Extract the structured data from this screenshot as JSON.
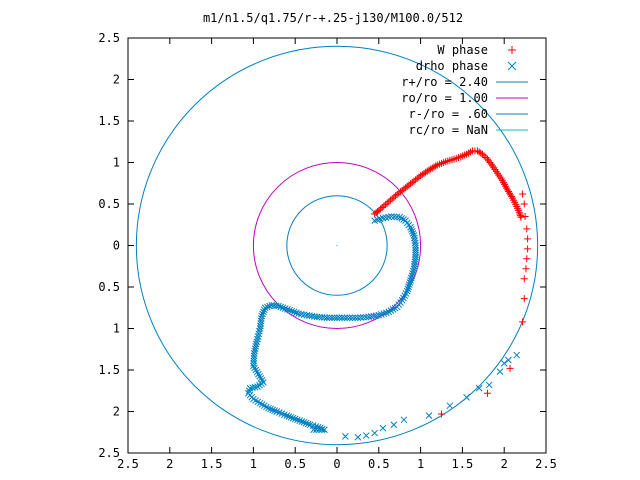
{
  "chart_data": {
    "type": "scatter",
    "title": "m1/n1.5/q1.75/r-+.25-j130/M100.0/512",
    "xlim": [
      -2.5,
      2.5
    ],
    "ylim": [
      -2.5,
      2.5
    ],
    "x_tick_labels": [
      "2.5",
      "2",
      "1.5",
      "1",
      "0.5",
      "0",
      "0.5",
      "1",
      "1.5",
      "2",
      "2.5"
    ],
    "y_tick_labels": [
      "2.5",
      "2",
      "1.5",
      "1",
      "0.5",
      "0",
      "0.5",
      "1",
      "1.5",
      "2",
      "2.5"
    ],
    "grid": false,
    "legend_position": "top-right",
    "colors": {
      "w_phase": "#ff0000",
      "drho_phase": "#0080c0",
      "r_plus": "#0080c0",
      "ro": "#c000c0",
      "r_minus": "#0080c0",
      "rc": "#00c0c0"
    },
    "series": [
      {
        "name": "W phase",
        "marker": "plus",
        "points": [
          [
            0.45,
            0.38
          ],
          [
            0.52,
            0.44
          ],
          [
            0.6,
            0.51
          ],
          [
            0.7,
            0.6
          ],
          [
            0.8,
            0.68
          ],
          [
            0.9,
            0.76
          ],
          [
            1.0,
            0.84
          ],
          [
            1.1,
            0.91
          ],
          [
            1.2,
            0.97
          ],
          [
            1.3,
            1.01
          ],
          [
            1.4,
            1.04
          ],
          [
            1.48,
            1.07
          ],
          [
            1.55,
            1.1
          ],
          [
            1.62,
            1.14
          ],
          [
            1.68,
            1.14
          ],
          [
            1.74,
            1.1
          ],
          [
            1.8,
            1.04
          ],
          [
            1.86,
            0.96
          ],
          [
            1.92,
            0.87
          ],
          [
            1.98,
            0.78
          ],
          [
            2.04,
            0.67
          ],
          [
            2.1,
            0.57
          ],
          [
            2.15,
            0.47
          ],
          [
            2.18,
            0.4
          ],
          [
            2.2,
            0.34
          ],
          [
            2.22,
            0.62
          ],
          [
            2.24,
            0.5
          ],
          [
            2.25,
            0.35
          ],
          [
            2.27,
            0.2
          ],
          [
            2.28,
            0.08
          ],
          [
            2.28,
            -0.04
          ],
          [
            2.27,
            -0.16
          ],
          [
            2.26,
            -0.28
          ],
          [
            2.24,
            -0.4
          ],
          [
            2.24,
            -0.64
          ],
          [
            2.22,
            -0.92
          ],
          [
            2.07,
            -1.48
          ],
          [
            1.8,
            -1.78
          ],
          [
            1.25,
            -2.03
          ]
        ]
      },
      {
        "name": "drho phase",
        "marker": "cross",
        "points": [
          [
            0.45,
            0.3
          ],
          [
            0.55,
            0.33
          ],
          [
            0.65,
            0.35
          ],
          [
            0.75,
            0.34
          ],
          [
            0.82,
            0.3
          ],
          [
            0.88,
            0.22
          ],
          [
            0.92,
            0.12
          ],
          [
            0.94,
            0.0
          ],
          [
            0.94,
            -0.14
          ],
          [
            0.92,
            -0.28
          ],
          [
            0.88,
            -0.42
          ],
          [
            0.84,
            -0.55
          ],
          [
            0.78,
            -0.66
          ],
          [
            0.72,
            -0.74
          ],
          [
            0.62,
            -0.8
          ],
          [
            0.5,
            -0.84
          ],
          [
            0.38,
            -0.86
          ],
          [
            0.25,
            -0.87
          ],
          [
            0.12,
            -0.87
          ],
          [
            0.0,
            -0.87
          ],
          [
            -0.12,
            -0.87
          ],
          [
            -0.24,
            -0.86
          ],
          [
            -0.36,
            -0.84
          ],
          [
            -0.46,
            -0.82
          ],
          [
            -0.54,
            -0.79
          ],
          [
            -0.62,
            -0.76
          ],
          [
            -0.7,
            -0.73
          ],
          [
            -0.78,
            -0.72
          ],
          [
            -0.86,
            -0.75
          ],
          [
            -0.9,
            -0.85
          ],
          [
            -0.92,
            -1.0
          ],
          [
            -0.96,
            -1.16
          ],
          [
            -0.99,
            -1.3
          ],
          [
            -1.0,
            -1.45
          ],
          [
            -0.94,
            -1.55
          ],
          [
            -0.88,
            -1.65
          ],
          [
            -0.95,
            -1.7
          ],
          [
            -1.04,
            -1.72
          ],
          [
            -1.06,
            -1.78
          ],
          [
            -1.0,
            -1.85
          ],
          [
            -0.92,
            -1.9
          ],
          [
            -0.82,
            -1.96
          ],
          [
            -0.72,
            -2.0
          ],
          [
            -0.6,
            -2.05
          ],
          [
            -0.5,
            -2.09
          ],
          [
            -0.42,
            -2.12
          ],
          [
            -0.32,
            -2.16
          ],
          [
            -0.25,
            -2.18
          ],
          [
            -0.2,
            -2.2
          ],
          [
            -0.15,
            -2.22
          ],
          [
            -0.28,
            -2.22
          ],
          [
            0.1,
            -2.3
          ],
          [
            0.25,
            -2.31
          ],
          [
            0.35,
            -2.29
          ],
          [
            0.45,
            -2.26
          ],
          [
            0.55,
            -2.2
          ],
          [
            0.68,
            -2.16
          ],
          [
            0.8,
            -2.1
          ],
          [
            1.1,
            -2.05
          ],
          [
            1.35,
            -1.93
          ],
          [
            1.55,
            -1.83
          ],
          [
            1.7,
            -1.72
          ],
          [
            1.82,
            -1.68
          ],
          [
            1.95,
            -1.52
          ],
          [
            2.0,
            -1.42
          ],
          [
            2.05,
            -1.38
          ],
          [
            2.15,
            -1.32
          ]
        ]
      }
    ],
    "circles": [
      {
        "name": "r+/ro = 2.40",
        "radius": 2.4,
        "legend": "r+/ro = 2.40"
      },
      {
        "name": "ro/ro = 1.00",
        "radius": 1.0,
        "legend": "ro/ro = 1.00"
      },
      {
        "name": "r-/ro = .60",
        "radius": 0.6,
        "legend": "r-/ro = .60"
      },
      {
        "name": "rc/ro = NaN",
        "radius": null,
        "legend": "rc/ro = NaN"
      }
    ]
  }
}
